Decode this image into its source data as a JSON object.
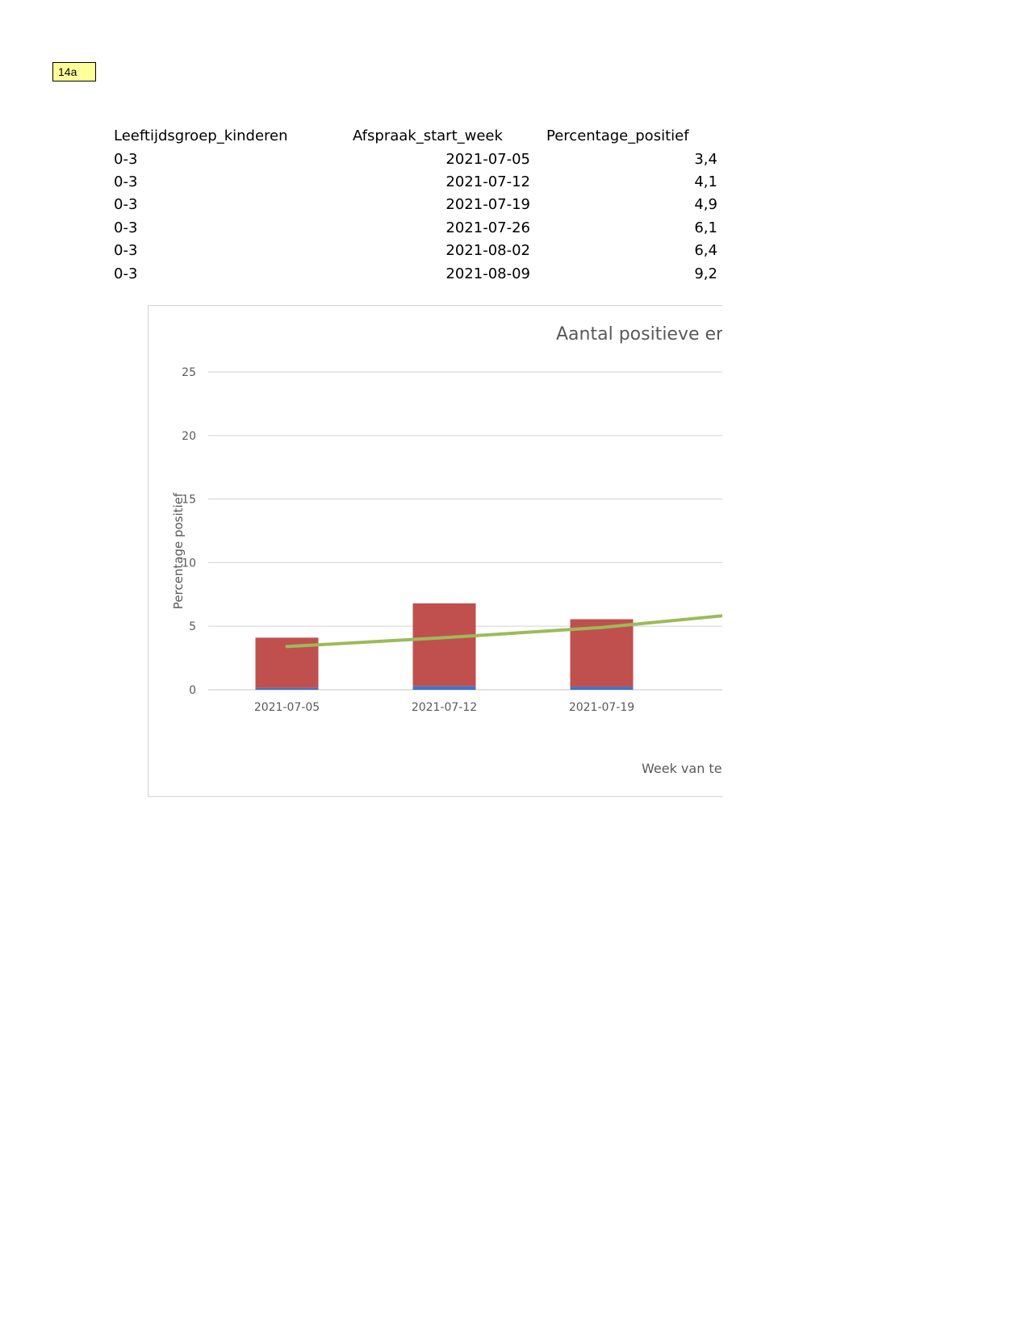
{
  "tag": {
    "label": "14a"
  },
  "table": {
    "headers": [
      "Leeftijdsgroep_kinderen",
      "Afspraak_start_week",
      "Percentage_positief"
    ],
    "rows": [
      [
        "0-3",
        "2021-07-05",
        "3,4"
      ],
      [
        "0-3",
        "2021-07-12",
        "4,1"
      ],
      [
        "0-3",
        "2021-07-19",
        "4,9"
      ],
      [
        "0-3",
        "2021-07-26",
        "6,1"
      ],
      [
        "0-3",
        "2021-08-02",
        "6,4"
      ],
      [
        "0-3",
        "2021-08-09",
        "9,2"
      ]
    ]
  },
  "chart_data": {
    "type": "bar",
    "title": "Aantal positieve er",
    "xlabel": "Week van te",
    "ylabel": "Percentage positief",
    "ylim": [
      0,
      25
    ],
    "yticks": [
      0,
      5,
      10,
      15,
      20,
      25
    ],
    "grid": true,
    "categories": [
      "2021-07-05",
      "2021-07-12",
      "2021-07-19"
    ],
    "stacked_series": [
      {
        "color": "#4472c4",
        "values": [
          0.15,
          0.3,
          0.25
        ]
      },
      {
        "color": "#c0504d",
        "values": [
          3.95,
          6.5,
          5.3
        ]
      }
    ],
    "line_series": {
      "color": "#9bbb59",
      "x": [
        "2021-07-05",
        "2021-07-12",
        "2021-07-19",
        "2021-07-26"
      ],
      "values": [
        3.4,
        4.1,
        4.9,
        6.1
      ]
    }
  }
}
